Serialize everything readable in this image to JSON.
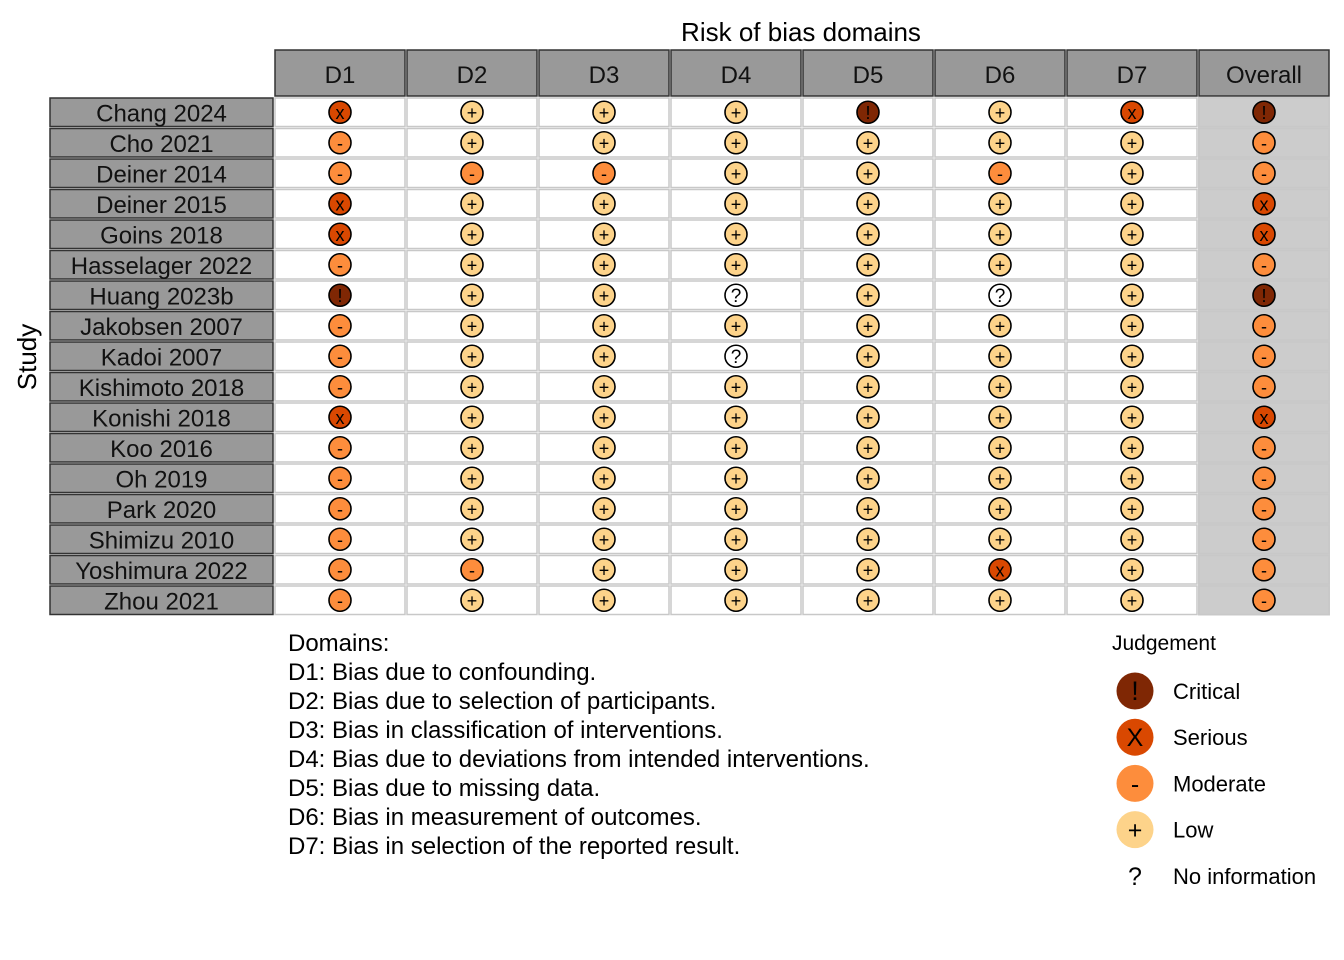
{
  "chart_data": {
    "type": "table",
    "title": "Risk of bias domains",
    "ylabel": "Study",
    "columns": [
      "D1",
      "D2",
      "D3",
      "D4",
      "D5",
      "D6",
      "D7",
      "Overall"
    ],
    "studies": [
      "Chang 2024",
      "Cho 2021",
      "Deiner 2014",
      "Deiner 2015",
      "Goins 2018",
      "Hasselager 2022",
      "Huang 2023b",
      "Jakobsen 2007",
      "Kadoi 2007",
      "Kishimoto 2018",
      "Konishi 2018",
      "Koo 2016",
      "Oh 2019",
      "Park 2020",
      "Shimizu 2010",
      "Yoshimura 2022",
      "Zhou 2021"
    ],
    "judgements": [
      [
        "Serious",
        "Low",
        "Low",
        "Low",
        "Critical",
        "Low",
        "Serious",
        "Critical"
      ],
      [
        "Moderate",
        "Low",
        "Low",
        "Low",
        "Low",
        "Low",
        "Low",
        "Moderate"
      ],
      [
        "Moderate",
        "Moderate",
        "Moderate",
        "Low",
        "Low",
        "Moderate",
        "Low",
        "Moderate"
      ],
      [
        "Serious",
        "Low",
        "Low",
        "Low",
        "Low",
        "Low",
        "Low",
        "Serious"
      ],
      [
        "Serious",
        "Low",
        "Low",
        "Low",
        "Low",
        "Low",
        "Low",
        "Serious"
      ],
      [
        "Moderate",
        "Low",
        "Low",
        "Low",
        "Low",
        "Low",
        "Low",
        "Moderate"
      ],
      [
        "Critical",
        "Low",
        "Low",
        "No information",
        "Low",
        "No information",
        "Low",
        "Critical"
      ],
      [
        "Moderate",
        "Low",
        "Low",
        "Low",
        "Low",
        "Low",
        "Low",
        "Moderate"
      ],
      [
        "Moderate",
        "Low",
        "Low",
        "No information",
        "Low",
        "Low",
        "Low",
        "Moderate"
      ],
      [
        "Moderate",
        "Low",
        "Low",
        "Low",
        "Low",
        "Low",
        "Low",
        "Moderate"
      ],
      [
        "Serious",
        "Low",
        "Low",
        "Low",
        "Low",
        "Low",
        "Low",
        "Serious"
      ],
      [
        "Moderate",
        "Low",
        "Low",
        "Low",
        "Low",
        "Low",
        "Low",
        "Moderate"
      ],
      [
        "Moderate",
        "Low",
        "Low",
        "Low",
        "Low",
        "Low",
        "Low",
        "Moderate"
      ],
      [
        "Moderate",
        "Low",
        "Low",
        "Low",
        "Low",
        "Low",
        "Low",
        "Moderate"
      ],
      [
        "Moderate",
        "Low",
        "Low",
        "Low",
        "Low",
        "Low",
        "Low",
        "Moderate"
      ],
      [
        "Moderate",
        "Moderate",
        "Low",
        "Low",
        "Low",
        "Serious",
        "Low",
        "Moderate"
      ],
      [
        "Moderate",
        "Low",
        "Low",
        "Low",
        "Low",
        "Low",
        "Low",
        "Moderate"
      ]
    ],
    "domains_heading": "Domains:",
    "domain_descriptions": [
      "D1: Bias due to confounding.",
      "D2: Bias due to selection of participants.",
      "D3: Bias in classification of interventions.",
      "D4: Bias due to deviations from intended interventions.",
      "D5: Bias due to missing data.",
      "D6: Bias in measurement of outcomes.",
      "D7: Bias in selection of the reported result."
    ],
    "legend_title": "Judgement",
    "legend": [
      {
        "label": "Critical",
        "symbol": "!",
        "color": "#7f2704"
      },
      {
        "label": "Serious",
        "symbol": "X",
        "color": "#d94801"
      },
      {
        "label": "Moderate",
        "symbol": "-",
        "color": "#fd8d3c"
      },
      {
        "label": "Low",
        "symbol": "+",
        "color": "#fdd38a"
      },
      {
        "label": "No information",
        "symbol": "?",
        "color": "#ffffff"
      }
    ],
    "cell_symbols": {
      "Critical": "!",
      "Serious": "x",
      "Moderate": "-",
      "Low": "+",
      "No information": "?"
    },
    "colors": {
      "header_fill": "#999999",
      "study_fill": "#999999",
      "overall_fill": "#cccccc",
      "cell_fill": "#ffffff",
      "grid": "#c8c8c8"
    }
  }
}
